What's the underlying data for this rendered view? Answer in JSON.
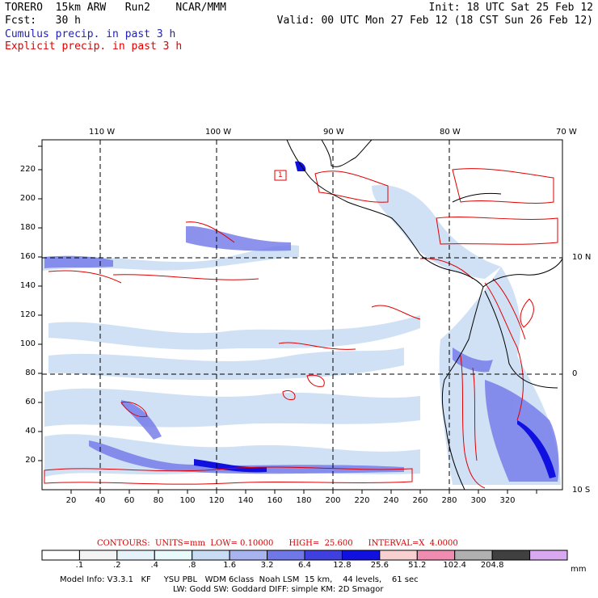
{
  "header": {
    "line1_left": "TORERO  15km ARW   Run2    NCAR/MMM",
    "line1_right": "Init: 18 UTC Sat 25 Feb 12",
    "line2_left": "Fcst:   30 h",
    "line2_right": "Valid: 00 UTC Mon 27 Feb 12 (18 CST Sun 26 Feb 12)",
    "cumulus_label": "Cumulus precip. in past 3 h",
    "explicit_label": "Explicit precip. in past 3 h"
  },
  "colors": {
    "cumulus": "#2020c0",
    "explicit": "#e00000",
    "frame": "#000000"
  },
  "map": {
    "top_longitude_labels": [
      "110 W",
      "100 W",
      "90 W",
      "80 W",
      "70 W"
    ],
    "right_latitude_labels": [
      "10 N",
      "0",
      "10 S"
    ],
    "bottom_axis_labels": [
      "20",
      "40",
      "60",
      "80",
      "100",
      "120",
      "140",
      "160",
      "180",
      "200",
      "220",
      "240",
      "260",
      "280",
      "300",
      "320"
    ],
    "left_axis_labels": [
      "20",
      "40",
      "60",
      "80",
      "100",
      "120",
      "140",
      "160",
      "180",
      "200",
      "220"
    ],
    "station_marker": "1"
  },
  "legend": {
    "title": "CONTOURS:  UNITS=mm  LOW= 0.10000      HIGH=  25.600      INTERVAL=X  4.0000",
    "unit": "mm",
    "thresholds": [
      ".1",
      ".2",
      ".4",
      ".8",
      "1.6",
      "3.2",
      "6.4",
      "12.8",
      "25.6",
      "51.2",
      "102.4",
      "204.8"
    ],
    "colors": [
      "#ffffff",
      "#f4f4f4",
      "#e6f2fa",
      "#e8fafa",
      "#c8dcf4",
      "#a8b4f0",
      "#7078e8",
      "#4040e0",
      "#1010e0",
      "#f8d0d0",
      "#f08cb0",
      "#b0b0b0",
      "#404040",
      "#d8a8f0"
    ]
  },
  "model_info": {
    "line1": "Model Info: V3.3.1   KF     YSU PBL   WDM 6class  Noah LSM  15 km,    44 levels,    61 sec",
    "line2": "LW: Godd SW: Goddard DIFF: simple KM: 2D Smagor"
  }
}
